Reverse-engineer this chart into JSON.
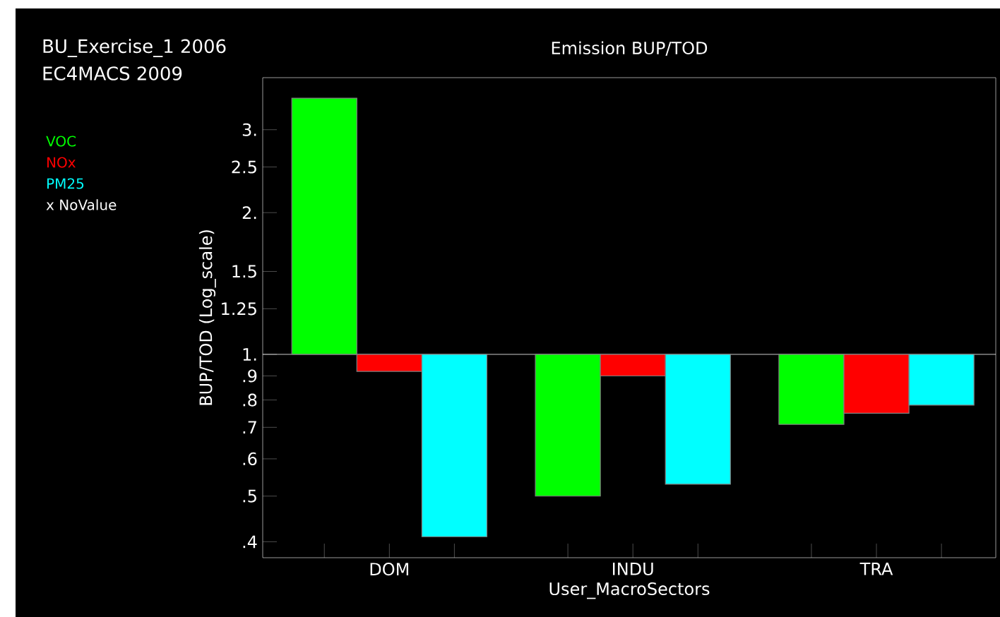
{
  "chart_data": {
    "type": "bar",
    "title": "Emission BUP/TOD",
    "xlabel": "User_MacroSectors",
    "ylabel": "BUP/TOD  (Log_scale)",
    "annotations": [
      "BU_Exercise_1 2006",
      "EC4MACS 2009",
      "x NoValue"
    ],
    "categories": [
      "DOM",
      "INDU",
      "TRA"
    ],
    "series": [
      {
        "name": "VOC",
        "color": "#00ff00",
        "base": [
          1,
          1,
          1
        ],
        "values": [
          2.5,
          -0.5,
          -0.29
        ]
      },
      {
        "name": "NOx",
        "color": "#ff0000",
        "base": [
          1,
          1,
          1
        ],
        "values": [
          -0.08,
          -0.1,
          -0.25
        ]
      },
      {
        "name": "PM25",
        "color": "#00ffff",
        "base": [
          1,
          1,
          1
        ],
        "values": [
          -0.59,
          -0.47,
          -0.22
        ]
      }
    ],
    "log": "y",
    "ylim": [
      0.37,
      3.87
    ],
    "yticks": [
      {
        "value": 0.4,
        "label": ".4"
      },
      {
        "value": 0.5,
        "label": ".5"
      },
      {
        "value": 0.6,
        "label": ".6"
      },
      {
        "value": 0.7,
        "label": ".7"
      },
      {
        "value": 0.8,
        "label": ".8"
      },
      {
        "value": 0.9,
        "label": ".9"
      },
      {
        "value": 1,
        "label": "1."
      },
      {
        "value": 1.25,
        "label": "1.25"
      },
      {
        "value": 1.5,
        "label": "1.5"
      },
      {
        "value": 2,
        "label": "2."
      },
      {
        "value": 2.5,
        "label": "2.5"
      },
      {
        "value": 3,
        "label": "3."
      }
    ],
    "ref_lines": [
      {
        "axis": "y",
        "value": 1,
        "color": "#ffffff"
      }
    ]
  }
}
